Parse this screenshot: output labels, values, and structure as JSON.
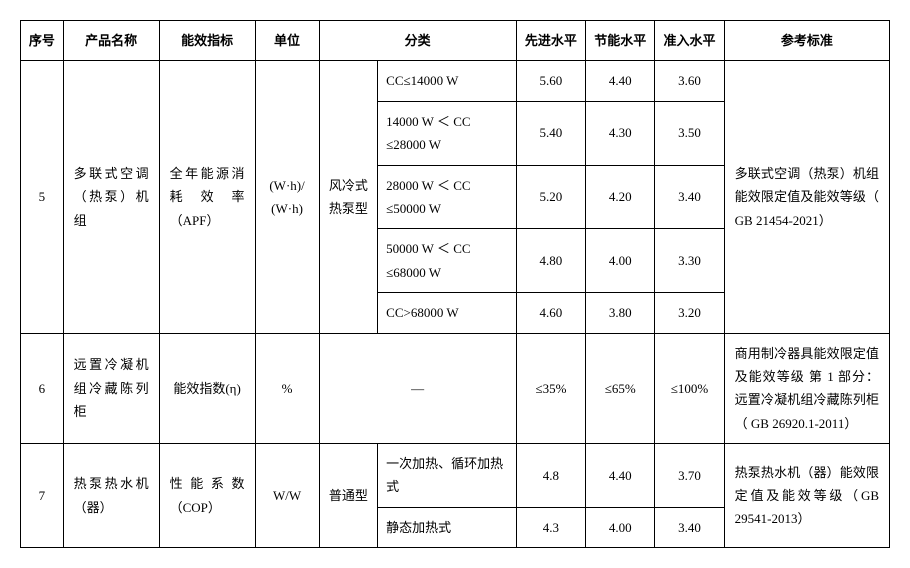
{
  "headers": {
    "seq": "序号",
    "name": "产品名称",
    "metric": "能效指标",
    "unit": "单位",
    "category": "分类",
    "advanced": "先进水平",
    "energy_saving": "节能水平",
    "entry": "准入水平",
    "standard": "参考标准"
  },
  "rows": [
    {
      "seq": "5",
      "name": "多联式空调（热泵）机组",
      "metric": "全年能源消耗效率（APF）",
      "unit": "(W·h)/ (W·h)",
      "cat1": "风冷式热泵型",
      "sub": [
        {
          "cat2": "CC≤14000 W",
          "adv": "5.60",
          "es": "4.40",
          "en": "3.60"
        },
        {
          "cat2": "14000 W ＜ CC ≤28000 W",
          "adv": "5.40",
          "es": "4.30",
          "en": "3.50"
        },
        {
          "cat2": "28000 W ＜ CC ≤50000 W",
          "adv": "5.20",
          "es": "4.20",
          "en": "3.40"
        },
        {
          "cat2": "50000 W ＜ CC ≤68000 W",
          "adv": "4.80",
          "es": "4.00",
          "en": "3.30"
        },
        {
          "cat2": "CC>68000 W",
          "adv": "4.60",
          "es": "3.80",
          "en": "3.20"
        }
      ],
      "standard": "多联式空调（热泵）机组能效限定值及能效等级（ GB 21454-2021）"
    },
    {
      "seq": "6",
      "name": "远置冷凝机组冷藏陈列柜",
      "metric": "能效指数(η)",
      "unit": "%",
      "cat_merged": "—",
      "adv": "≤35%",
      "es": "≤65%",
      "en": "≤100%",
      "standard": "商用制冷器具能效限定值及能效等级 第 1 部分：远置冷凝机组冷藏陈列柜（ GB 26920.1-2011）"
    },
    {
      "seq": "7",
      "name": "热泵热水机（器）",
      "metric": "性能系数（COP）",
      "unit": "W/W",
      "cat1": "普通型",
      "sub": [
        {
          "cat2": "一次加热、循环加热式",
          "adv": "4.8",
          "es": "4.40",
          "en": "3.70"
        },
        {
          "cat2": "静态加热式",
          "adv": "4.3",
          "es": "4.00",
          "en": "3.40"
        }
      ],
      "standard": "热泵热水机（器）能效限定值及能效等级（GB 29541-2013）"
    }
  ],
  "style": {
    "font_size": 13,
    "border_color": "#000000",
    "background": "#ffffff",
    "line_height": 1.8
  }
}
